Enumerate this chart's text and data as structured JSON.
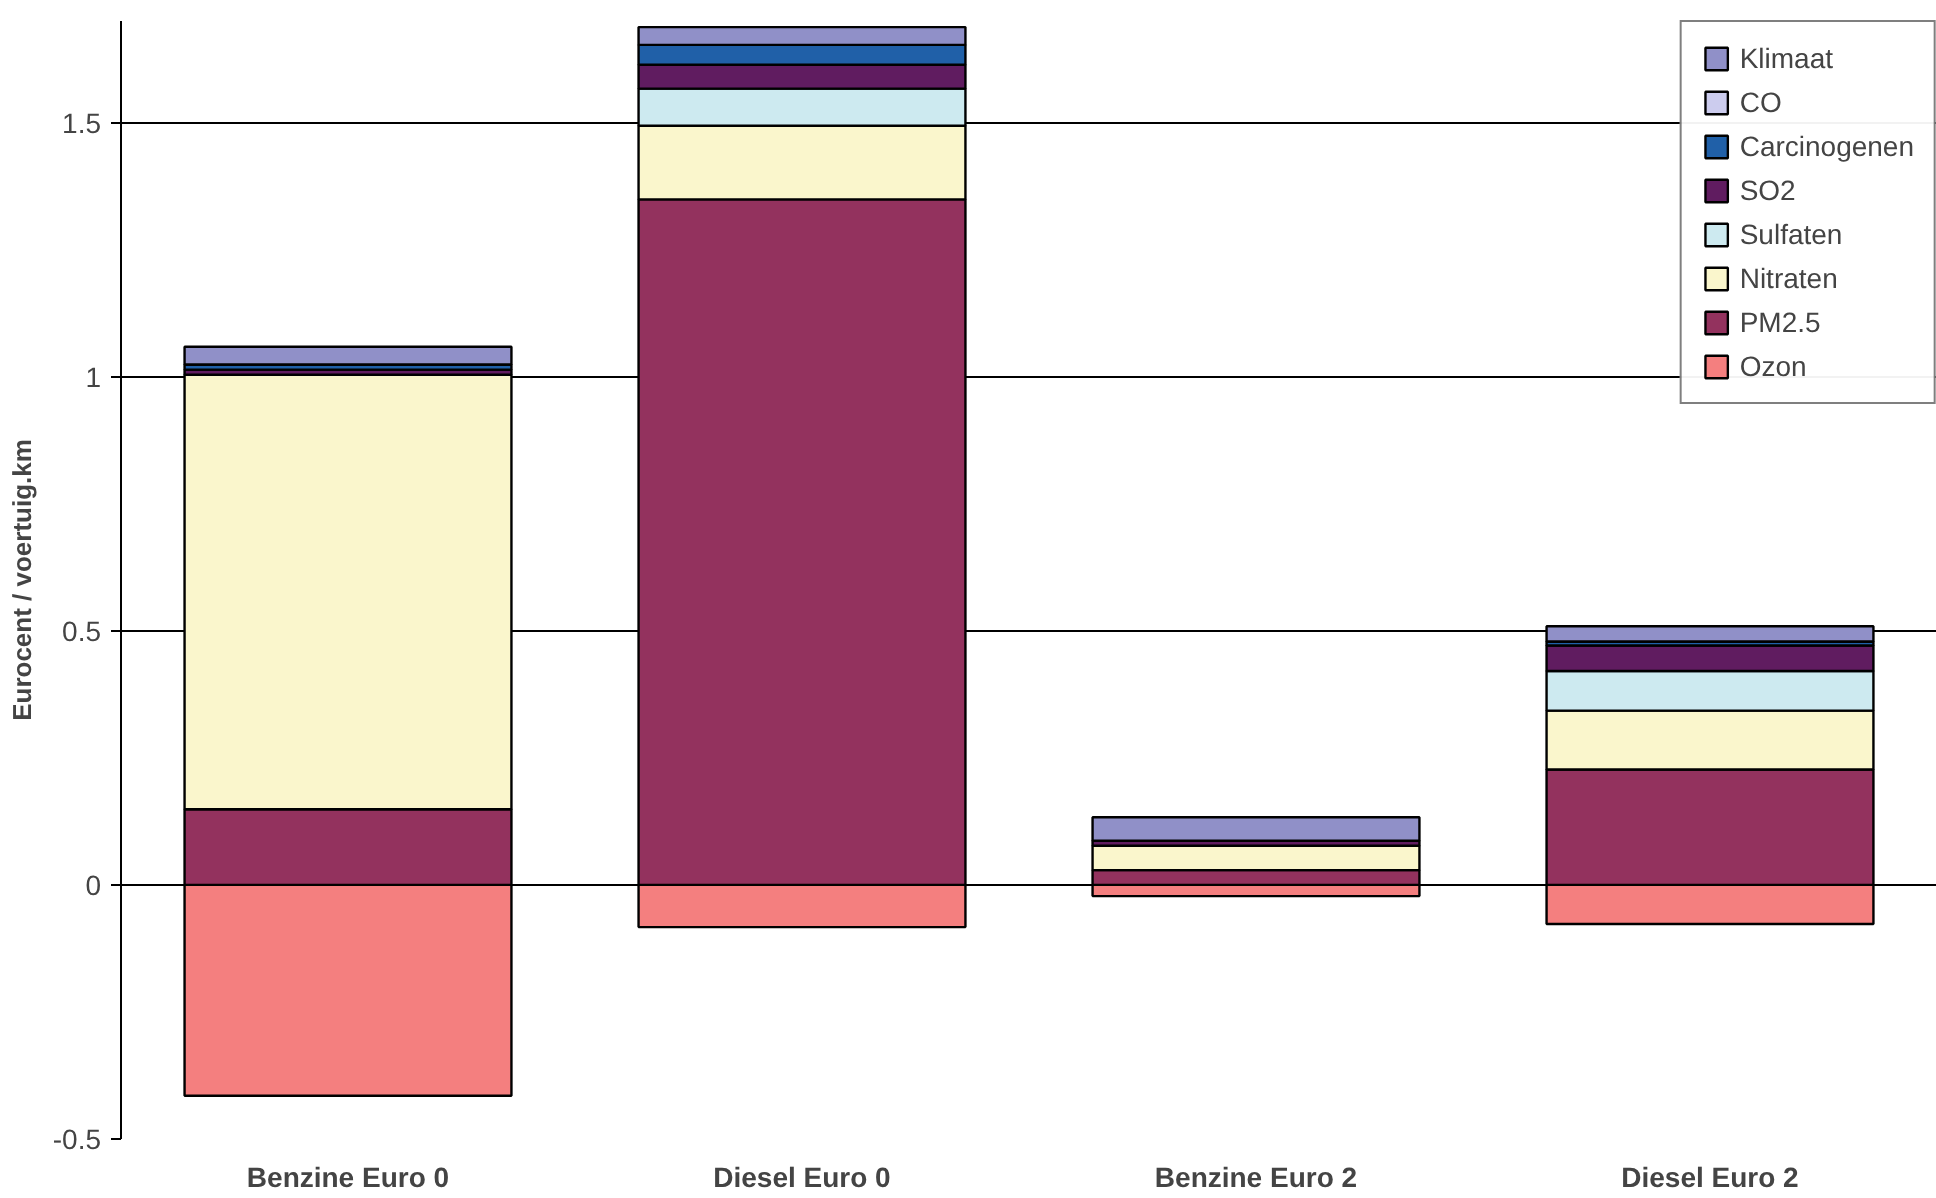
{
  "chart_data": {
    "type": "bar",
    "stacked": true,
    "ylabel": "Eurocent / voertuig.km",
    "categories": [
      "Benzine Euro 0",
      "Diesel Euro 0",
      "Benzine Euro 2",
      "Diesel Euro 2"
    ],
    "ylim": [
      -0.5,
      1.7
    ],
    "yticks": [
      -0.5,
      0,
      0.5,
      1,
      1.5
    ],
    "grid": "y",
    "legend": "top right",
    "series": [
      {
        "name": "Ozon",
        "color": "#f47f7f",
        "values": [
          -0.415,
          -0.083,
          -0.022,
          -0.077
        ]
      },
      {
        "name": "PM2.5",
        "color": "#93325e",
        "values": [
          0.149,
          1.349,
          0.029,
          0.227
        ]
      },
      {
        "name": "Nitraten",
        "color": "#faf6cc",
        "values": [
          0.855,
          0.145,
          0.048,
          0.116
        ]
      },
      {
        "name": "Sulfaten",
        "color": "#cdeaf0",
        "values": [
          0,
          0.073,
          null,
          0.078
        ]
      },
      {
        "name": "SO2",
        "color": "#601c60",
        "values": [
          0.01,
          0.047,
          0.01,
          0.05
        ]
      },
      {
        "name": "Carcinogenen",
        "color": "#2060a8",
        "values": [
          0.01,
          0.039,
          0,
          0.008
        ]
      },
      {
        "name": "CO",
        "color": "#ccccee",
        "values": [
          0,
          0,
          0,
          0
        ]
      },
      {
        "name": "Klimaat",
        "color": "#9090c8",
        "values": [
          0.035,
          0.035,
          0.046,
          0.03
        ]
      }
    ]
  }
}
